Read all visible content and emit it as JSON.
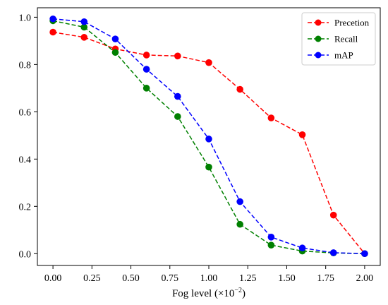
{
  "chart_data": {
    "type": "line",
    "title": "",
    "xlabel_main": "Fog level (×10",
    "xlabel_exp": "−2",
    "xlabel_close": ")",
    "ylabel": "",
    "xlim": [
      -0.1,
      2.1
    ],
    "ylim": [
      -0.05,
      1.04
    ],
    "x_ticks": [
      0.0,
      0.25,
      0.5,
      0.75,
      1.0,
      1.25,
      1.5,
      1.75,
      2.0
    ],
    "x_tick_labels": [
      "0.00",
      "0.25",
      "0.50",
      "0.75",
      "1.00",
      "1.25",
      "1.50",
      "1.75",
      "2.00"
    ],
    "y_ticks": [
      0.0,
      0.2,
      0.4,
      0.6,
      0.8,
      1.0
    ],
    "y_tick_labels": [
      "0.0",
      "0.2",
      "0.4",
      "0.6",
      "0.8",
      "1.0"
    ],
    "grid": false,
    "legend_position": "top-right",
    "x": [
      0.0,
      0.2,
      0.4,
      0.6,
      0.8,
      1.0,
      1.2,
      1.4,
      1.6,
      1.8,
      2.0
    ],
    "series": [
      {
        "name": "Precetion",
        "color": "#ff0000",
        "values": [
          0.937,
          0.915,
          0.866,
          0.84,
          0.836,
          0.808,
          0.695,
          0.574,
          0.503,
          0.163,
          0.0
        ]
      },
      {
        "name": "Recall",
        "color": "#008000",
        "values": [
          0.985,
          0.958,
          0.851,
          0.7,
          0.58,
          0.366,
          0.124,
          0.036,
          0.011,
          0.003,
          0.0
        ]
      },
      {
        "name": "mAP",
        "color": "#0000ff",
        "values": [
          0.993,
          0.981,
          0.908,
          0.78,
          0.665,
          0.485,
          0.22,
          0.07,
          0.024,
          0.004,
          0.0
        ]
      }
    ]
  }
}
